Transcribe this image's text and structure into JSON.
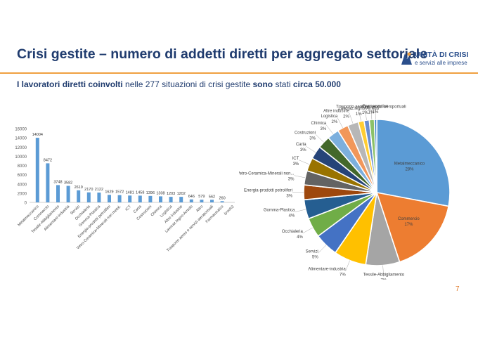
{
  "header": {
    "title": "Crisi gestite – numero di addetti diretti per aggregato settoriale",
    "logo_name": "UNITÀ DI CRISI",
    "logo_tagline": "e servizi alle imprese",
    "subtitle_bold1": "I lavoratori diretti coinvolti",
    "subtitle_mid": " nelle 277 situazioni di crisi gestite ",
    "subtitle_bold2": "sono",
    "subtitle_mid2": " stati ",
    "subtitle_bold3": "circa 50.000"
  },
  "footer": {
    "page_number": "7"
  },
  "colors": {
    "bar": "#5b9bd5",
    "title": "#1f3b6e",
    "rule": "#f0a040"
  },
  "chart_data": [
    {
      "type": "bar",
      "categories": [
        "Metalmeccanico",
        "Commercio",
        "Tessile-Abbigliamento",
        "Alimentare-industria",
        "Servizi",
        "Occhialeria",
        "Gomma-Plastica",
        "Energia-prodotti petroliferi",
        "Vetro-Ceramica-Minerali non metal.",
        "ICT",
        "Carta",
        "Costruzioni",
        "Chimica",
        "Logistica",
        "Altre industrie",
        "Lavoraz.legno-Arredo",
        "Altro",
        "Trasporto aereo e servizi aeroportuali",
        "Farmaceutico",
        "(vuoto)"
      ],
      "values": [
        14004,
        8472,
        3748,
        3582,
        2619,
        2170,
        2122,
        1629,
        1572,
        1481,
        1458,
        1396,
        1308,
        1203,
        1202,
        646,
        579,
        562,
        260,
        null
      ],
      "value_labels": [
        "14004",
        "8472",
        "3748",
        "3582",
        "2619",
        "2170",
        "2122",
        "1629",
        "1572",
        "1481",
        "1458",
        "1396",
        "1308",
        "1203",
        "1202",
        "646",
        "579",
        "562",
        "260",
        ""
      ],
      "y_ticks": [
        "0",
        "2000",
        "4000",
        "6000",
        "8000",
        "10000",
        "12000",
        "14000",
        "16000"
      ],
      "ylim": [
        0,
        16000
      ],
      "grid": false,
      "legend": "none"
    },
    {
      "type": "pie",
      "slices": [
        {
          "label": "Metalmeccanico",
          "pct_label": "28%",
          "value": 14004,
          "color": "#5b9bd5"
        },
        {
          "label": "Commercio",
          "pct_label": "17%",
          "value": 8472,
          "color": "#ed7d31"
        },
        {
          "label": "Tessile-Abbigliamento",
          "pct_label": "7%",
          "value": 3748,
          "color": "#a5a5a5"
        },
        {
          "label": "Alimentare-industria",
          "pct_label": "7%",
          "value": 3582,
          "color": "#ffc000"
        },
        {
          "label": "Servizi",
          "pct_label": "5%",
          "value": 2619,
          "color": "#4472c4"
        },
        {
          "label": "Occhialeria",
          "pct_label": "4%",
          "value": 2170,
          "color": "#70ad47"
        },
        {
          "label": "Gomma-Plastica",
          "pct_label": "4%",
          "value": 2122,
          "color": "#255e91"
        },
        {
          "label": "Energia-prodotti petroliferi",
          "pct_label": "3%",
          "value": 1629,
          "color": "#9e480e"
        },
        {
          "label": "Vetro-Ceramica-Minerali non...",
          "pct_label": "3%",
          "value": 1572,
          "color": "#636363"
        },
        {
          "label": "ICT",
          "pct_label": "3%",
          "value": 1481,
          "color": "#997300"
        },
        {
          "label": "Carta",
          "pct_label": "3%",
          "value": 1458,
          "color": "#264478"
        },
        {
          "label": "Costruzioni",
          "pct_label": "3%",
          "value": 1396,
          "color": "#43682b"
        },
        {
          "label": "Chimica",
          "pct_label": "3%",
          "value": 1308,
          "color": "#7cafdd"
        },
        {
          "label": "Logistica",
          "pct_label": "2%",
          "value": 1203,
          "color": "#f1975a"
        },
        {
          "label": "Altre industrie",
          "pct_label": "2%",
          "value": 1202,
          "color": "#b7b7b7"
        },
        {
          "label": "Lavoraz.legno-Arredo",
          "pct_label": "1%",
          "value": 646,
          "color": "#ffcd33"
        },
        {
          "label": "Altro",
          "pct_label": "1%",
          "value": 579,
          "color": "#698ed0"
        },
        {
          "label": "Trasporto aereo e servizi aeroportuali",
          "pct_label": "1%",
          "value": 562,
          "color": "#8cc168"
        },
        {
          "label": "Farmaceutico",
          "pct_label": "1%",
          "value": 260,
          "color": "#327dc2"
        }
      ],
      "legend": "none"
    }
  ]
}
